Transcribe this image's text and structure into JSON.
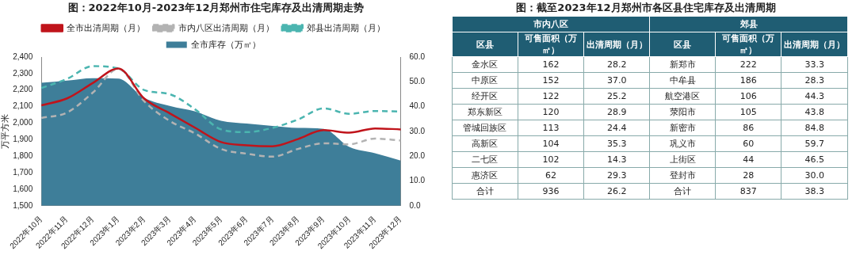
{
  "chart_data": [
    {
      "type": "area",
      "title": "图：2022年10月-2023年12月郑州市住宅库存及出清周期走势",
      "ylabel": "万平方米",
      "categories": [
        "2022年10月",
        "2022年11月",
        "2022年12月",
        "2023年1月",
        "2023年2月",
        "2023年3月",
        "2023年4月",
        "2023年5月",
        "2023年6月",
        "2023年7月",
        "2023年8月",
        "2023年9月",
        "2023年10月",
        "2023年11月",
        "2023年12月"
      ],
      "series": [
        {
          "name": "全市库存（万㎡）",
          "type": "area",
          "color": "#3e7e99",
          "values": [
            2244,
            2257,
            2272,
            2269,
            2153,
            2104,
            2070,
            2014,
            1997,
            1983,
            1971,
            1965,
            1856,
            1818,
            1773
          ]
        },
        {
          "name": "全市出清周期（月）",
          "type": "line",
          "axis": "y2",
          "color": "#c0141b",
          "line_style": "solid",
          "values": [
            40.5,
            43.3,
            49.5,
            55.4,
            43.3,
            37.3,
            31.4,
            25.7,
            24.4,
            24.0,
            26.9,
            30.5,
            29.5,
            31.2,
            30.8
          ]
        },
        {
          "name": "市内八区出清周期（月）",
          "type": "line",
          "axis": "y2",
          "color": "#b3b3b3",
          "line_style": "dashed",
          "values": [
            35.4,
            37.6,
            45.6,
            55.2,
            42.2,
            34.2,
            29.1,
            22.9,
            21.0,
            19.8,
            22.9,
            25.2,
            24.8,
            27.1,
            26.3
          ]
        },
        {
          "name": "郊县出清周期（月）",
          "type": "line",
          "axis": "y2",
          "color": "#4bb5b0",
          "line_style": "dashed",
          "values": [
            47.5,
            51.2,
            56.3,
            55.4,
            46.7,
            45.0,
            38.8,
            30.8,
            29.7,
            31.4,
            34.8,
            39.3,
            37.1,
            38.2,
            38.0
          ]
        }
      ],
      "ylim": [
        1500,
        2400
      ],
      "yticks": [
        {
          "value": 1500,
          "label": "1,500"
        },
        {
          "value": 1600,
          "label": "1,600"
        },
        {
          "value": 1700,
          "label": "1,700"
        },
        {
          "value": 1800,
          "label": "1,800"
        },
        {
          "value": 1900,
          "label": "1,900"
        },
        {
          "value": 2000,
          "label": "2,000"
        },
        {
          "value": 2100,
          "label": "2,100"
        },
        {
          "value": 2200,
          "label": "2,200"
        },
        {
          "value": 2300,
          "label": "2,300"
        },
        {
          "value": 2400,
          "label": "2,400"
        }
      ],
      "y2lim": [
        0,
        60
      ],
      "y2ticks": [
        {
          "value": 0,
          "label": "0.0"
        },
        {
          "value": 10,
          "label": "10.0"
        },
        {
          "value": 20,
          "label": "20.0"
        },
        {
          "value": 30,
          "label": "30.0"
        },
        {
          "value": 40,
          "label": "40.0"
        },
        {
          "value": 50,
          "label": "50.0"
        },
        {
          "value": 60,
          "label": "60.0"
        }
      ],
      "grid": false,
      "legend": "top",
      "marker": "none"
    },
    {
      "type": "other",
      "title": "图：截至2023年12月郑州市各区县住宅库存及出清周期",
      "annotations": [
        "市内八区",
        "郊县",
        "区县",
        "可售面积（万㎡）",
        "出清周期（月）",
        "区县",
        "可售面积（万㎡）",
        "出清周期（月）",
        "金水区",
        "162",
        "28.2",
        "新郑市",
        "222",
        "33.3",
        "中原区",
        "152",
        "37.0",
        "中牟县",
        "186",
        "28.3",
        "经开区",
        "122",
        "25.2",
        "航空港区",
        "106",
        "44.3",
        "郑东新区",
        "120",
        "28.9",
        "荥阳市",
        "105",
        "43.8",
        "管城回族区",
        "113",
        "24.4",
        "新密市",
        "86",
        "84.8",
        "高新区",
        "104",
        "35.3",
        "巩义市",
        "60",
        "59.7",
        "二七区",
        "102",
        "14.3",
        "上街区",
        "44",
        "46.5",
        "惠济区",
        "62",
        "29.3",
        "登封市",
        "28",
        "30.0",
        "合计",
        "936",
        "26.2",
        "合计",
        "837",
        "38.3"
      ]
    }
  ]
}
